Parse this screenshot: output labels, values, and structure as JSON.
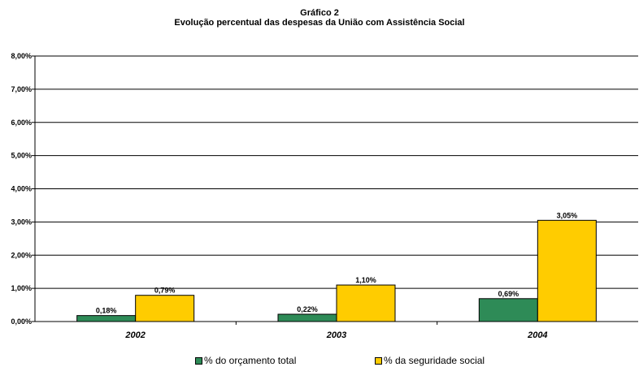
{
  "chart_data": {
    "type": "bar",
    "title": "Gráfico 2",
    "subtitle": "Evolução percentual das despesas da União com Assistência Social",
    "categories": [
      "2002",
      "2003",
      "2004"
    ],
    "series": [
      {
        "name": "% do orçamento total",
        "color": "#2e8b57",
        "values": [
          0.18,
          0.22,
          0.69
        ],
        "labels": [
          "0,18%",
          "0,22%",
          "0,69%"
        ]
      },
      {
        "name": "% da seguridade social",
        "color": "#ffcc00",
        "values": [
          0.79,
          1.1,
          3.05
        ],
        "labels": [
          "0,79%",
          "1,10%",
          "3,05%"
        ]
      }
    ],
    "ylim": [
      0,
      8
    ],
    "yticks": [
      "0,00%",
      "1,00%",
      "2,00%",
      "3,00%",
      "4,00%",
      "5,00%",
      "6,00%",
      "7,00%",
      "8,00%"
    ],
    "grid": true,
    "legend": "bottom"
  }
}
